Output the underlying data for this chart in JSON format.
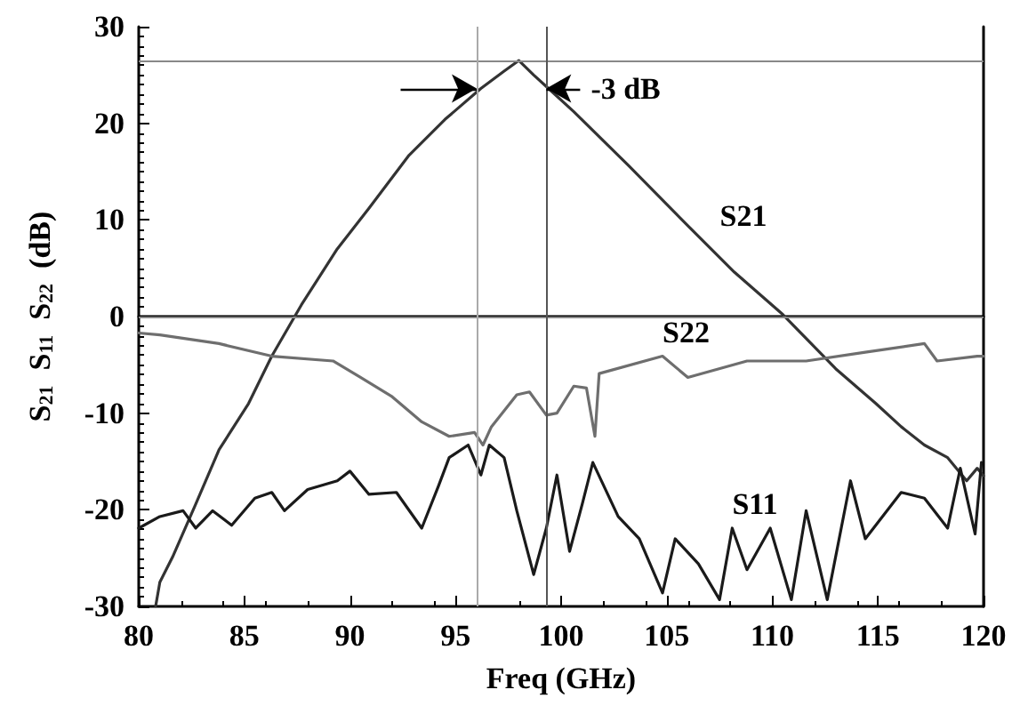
{
  "chart_data": {
    "type": "line",
    "xlabel": "Freq (GHz)",
    "ylabel": "S$_{21}$  S$_{11}$  S$_{22}$  (dB)",
    "xlim": [
      80,
      120
    ],
    "xticks": [
      80,
      85,
      90,
      95,
      100,
      105,
      110,
      115,
      120
    ],
    "ylim": [
      -30,
      30
    ],
    "yticks": [
      -30,
      -20,
      -10,
      0,
      10,
      20,
      30
    ],
    "grid": false,
    "legend": false,
    "marker": "none",
    "line_style": "solid",
    "series": [
      {
        "name": "S21",
        "color": "#333333",
        "x": [
          80.8,
          81.0,
          81.6,
          82.7,
          83.8,
          85.2,
          86.3,
          87.7,
          89.4,
          90.9,
          92.8,
          94.5,
          96.2,
          97.3,
          98.0,
          98.7,
          99.4,
          100.6,
          103.2,
          106.0,
          108.2,
          110.5,
          113.0,
          114.9,
          116.1,
          117.2,
          118.3,
          119.2,
          119.7,
          120.0
        ],
        "values": [
          -30,
          -27.5,
          -24.9,
          -19.4,
          -13.8,
          -9.0,
          -4.1,
          1.2,
          7.0,
          11.2,
          16.7,
          20.4,
          23.6,
          25.4,
          26.5,
          25.0,
          23.6,
          21.2,
          15.6,
          9.4,
          4.6,
          0.2,
          -5.4,
          -9.0,
          -11.4,
          -13.3,
          -14.6,
          -17.0,
          -15.7,
          -16.5
        ]
      },
      {
        "name": "S22",
        "color": "#6e6e6e",
        "x": [
          80.0,
          81.0,
          83.8,
          86.3,
          89.2,
          90.5,
          92.0,
          93.4,
          94.7,
          95.9,
          96.3,
          96.7,
          97.9,
          98.5,
          99.3,
          99.8,
          100.6,
          101.2,
          101.6,
          101.8,
          104.8,
          106.0,
          108.8,
          111.6,
          114.4,
          117.2,
          117.8,
          119.7,
          120.0
        ],
        "values": [
          -1.7,
          -1.9,
          -2.8,
          -4.1,
          -4.6,
          -6.3,
          -8.3,
          -10.9,
          -12.4,
          -12.0,
          -13.3,
          -11.4,
          -8.1,
          -7.8,
          -10.2,
          -10.0,
          -7.2,
          -7.4,
          -12.4,
          -5.9,
          -4.1,
          -6.3,
          -4.6,
          -4.6,
          -3.7,
          -2.8,
          -4.6,
          -4.1,
          -4.1
        ]
      },
      {
        "name": "S11",
        "color": "#1a1a1a",
        "x": [
          80.0,
          81.0,
          82.1,
          82.7,
          83.5,
          84.4,
          85.5,
          86.3,
          86.9,
          88.0,
          89.4,
          90.0,
          90.9,
          92.2,
          93.4,
          94.2,
          94.7,
          95.6,
          96.2,
          96.6,
          97.3,
          97.9,
          98.7,
          99.3,
          99.8,
          100.4,
          101.0,
          101.5,
          102.7,
          103.7,
          104.8,
          105.4,
          106.5,
          107.5,
          108.1,
          108.8,
          109.9,
          110.9,
          111.6,
          112.6,
          113.7,
          114.4,
          116.1,
          117.2,
          118.3,
          118.9,
          119.6,
          119.9
        ],
        "values": [
          -21.9,
          -20.7,
          -20.1,
          -21.9,
          -20.1,
          -21.6,
          -18.8,
          -18.2,
          -20.1,
          -17.9,
          -17.0,
          -16.0,
          -18.4,
          -18.2,
          -21.9,
          -17.5,
          -14.6,
          -13.3,
          -16.4,
          -13.3,
          -14.6,
          -20.1,
          -26.7,
          -21.9,
          -16.4,
          -24.3,
          -19.4,
          -15.1,
          -20.7,
          -23.0,
          -28.6,
          -23.0,
          -25.6,
          -29.3,
          -21.9,
          -26.2,
          -21.9,
          -29.3,
          -20.1,
          -29.3,
          -17.0,
          -23.0,
          -18.2,
          -18.8,
          -21.9,
          -15.7,
          -22.5,
          -15.1
        ]
      }
    ],
    "ref_lines": [
      {
        "axis": "y",
        "value": 26.5,
        "color": "#888888"
      },
      {
        "axis": "y",
        "value": 0,
        "color": "#888888"
      },
      {
        "axis": "x",
        "value": 96,
        "color": "#aaaaaa"
      },
      {
        "axis": "x",
        "value": 99.3,
        "color": "#555555"
      }
    ],
    "annotations": [
      {
        "text": "-3 dB",
        "x": 99.3,
        "y": 23.6
      }
    ]
  }
}
